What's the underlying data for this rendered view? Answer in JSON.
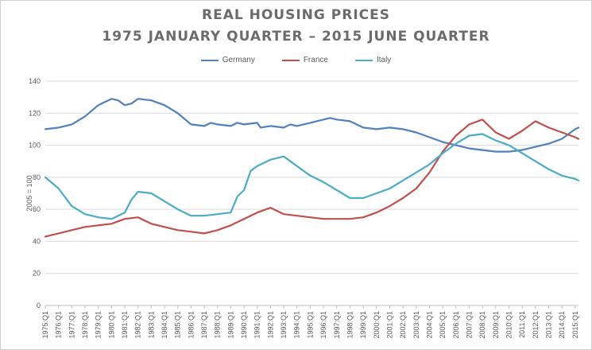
{
  "chart_data": {
    "type": "line",
    "title": "REAL HOUSING PRICES",
    "subtitle": "1975 JANUARY QUARTER – 2015 JUNE QUARTER",
    "xlabel": "",
    "ylabel": "2005 = 100",
    "ylim": [
      0,
      140
    ],
    "yticks": [
      0,
      20,
      40,
      60,
      80,
      100,
      120,
      140
    ],
    "grid": "horizontal",
    "legend_position": "top",
    "x_start_year": 1975,
    "x_end": "2015:Q2",
    "tick_labels": [
      "1975:Q1",
      "1976:Q1",
      "1977:Q1",
      "1978:Q1",
      "1979:Q1",
      "1980:Q1",
      "1981:Q1",
      "1982:Q1",
      "1983:Q1",
      "1984:Q1",
      "1985:Q1",
      "1986:Q1",
      "1987:Q1",
      "1988:Q1",
      "1989:Q1",
      "1990:Q1",
      "1991:Q1",
      "1992:Q1",
      "1993:Q1",
      "1994:Q1",
      "1995:Q1",
      "1996:Q1",
      "1997:Q1",
      "1998:Q1",
      "1999:Q1",
      "2000:Q1",
      "2001:Q1",
      "2002:Q1",
      "2003:Q1",
      "2004:Q1",
      "2005:Q1",
      "2006:Q1",
      "2007:Q1",
      "2008:Q1",
      "2009:Q1",
      "2010:Q1",
      "2011:Q1",
      "2012:Q1",
      "2013:Q1",
      "2014:Q1",
      "2015:Q1"
    ],
    "series": [
      {
        "name": "Germany",
        "color": "#4f81bd",
        "points": [
          [
            "1975:Q1",
            110
          ],
          [
            "1976:Q1",
            111
          ],
          [
            "1977:Q1",
            113
          ],
          [
            "1978:Q1",
            118
          ],
          [
            "1979:Q1",
            125
          ],
          [
            "1980:Q1",
            129
          ],
          [
            "1980:Q3",
            128
          ],
          [
            "1981:Q1",
            125
          ],
          [
            "1981:Q3",
            126
          ],
          [
            "1982:Q1",
            129
          ],
          [
            "1983:Q1",
            128
          ],
          [
            "1984:Q1",
            125
          ],
          [
            "1985:Q1",
            120
          ],
          [
            "1986:Q1",
            113
          ],
          [
            "1987:Q1",
            112
          ],
          [
            "1987:Q3",
            114
          ],
          [
            "1988:Q1",
            113
          ],
          [
            "1989:Q1",
            112
          ],
          [
            "1989:Q3",
            114
          ],
          [
            "1990:Q1",
            113
          ],
          [
            "1991:Q1",
            114
          ],
          [
            "1991:Q2",
            111
          ],
          [
            "1992:Q1",
            112
          ],
          [
            "1993:Q1",
            111
          ],
          [
            "1993:Q3",
            113
          ],
          [
            "1994:Q1",
            112
          ],
          [
            "1995:Q1",
            114
          ],
          [
            "1996:Q1",
            116
          ],
          [
            "1996:Q3",
            117
          ],
          [
            "1997:Q1",
            116
          ],
          [
            "1998:Q1",
            115
          ],
          [
            "1999:Q1",
            111
          ],
          [
            "2000:Q1",
            110
          ],
          [
            "2001:Q1",
            111
          ],
          [
            "2002:Q1",
            110
          ],
          [
            "2003:Q1",
            108
          ],
          [
            "2004:Q1",
            105
          ],
          [
            "2005:Q1",
            102
          ],
          [
            "2006:Q1",
            100
          ],
          [
            "2007:Q1",
            98
          ],
          [
            "2008:Q1",
            97
          ],
          [
            "2009:Q1",
            96
          ],
          [
            "2010:Q1",
            96
          ],
          [
            "2011:Q1",
            97
          ],
          [
            "2012:Q1",
            99
          ],
          [
            "2013:Q1",
            101
          ],
          [
            "2014:Q1",
            104
          ],
          [
            "2015:Q1",
            110
          ],
          [
            "2015:Q2",
            111
          ]
        ]
      },
      {
        "name": "France",
        "color": "#c0504d",
        "points": [
          [
            "1975:Q1",
            43
          ],
          [
            "1976:Q1",
            45
          ],
          [
            "1977:Q1",
            47
          ],
          [
            "1978:Q1",
            49
          ],
          [
            "1979:Q1",
            50
          ],
          [
            "1980:Q1",
            51
          ],
          [
            "1981:Q1",
            54
          ],
          [
            "1982:Q1",
            55
          ],
          [
            "1983:Q1",
            51
          ],
          [
            "1984:Q1",
            49
          ],
          [
            "1985:Q1",
            47
          ],
          [
            "1986:Q1",
            46
          ],
          [
            "1987:Q1",
            45
          ],
          [
            "1988:Q1",
            47
          ],
          [
            "1989:Q1",
            50
          ],
          [
            "1990:Q1",
            54
          ],
          [
            "1991:Q1",
            58
          ],
          [
            "1992:Q1",
            61
          ],
          [
            "1993:Q1",
            57
          ],
          [
            "1994:Q1",
            56
          ],
          [
            "1995:Q1",
            55
          ],
          [
            "1996:Q1",
            54
          ],
          [
            "1997:Q1",
            54
          ],
          [
            "1998:Q1",
            54
          ],
          [
            "1999:Q1",
            55
          ],
          [
            "2000:Q1",
            58
          ],
          [
            "2001:Q1",
            62
          ],
          [
            "2002:Q1",
            67
          ],
          [
            "2003:Q1",
            73
          ],
          [
            "2004:Q1",
            83
          ],
          [
            "2005:Q1",
            96
          ],
          [
            "2006:Q1",
            106
          ],
          [
            "2007:Q1",
            113
          ],
          [
            "2008:Q1",
            116
          ],
          [
            "2009:Q1",
            108
          ],
          [
            "2010:Q1",
            104
          ],
          [
            "2011:Q1",
            109
          ],
          [
            "2012:Q1",
            115
          ],
          [
            "2013:Q1",
            111
          ],
          [
            "2014:Q1",
            108
          ],
          [
            "2015:Q1",
            105
          ],
          [
            "2015:Q2",
            104
          ]
        ]
      },
      {
        "name": "Italy",
        "color": "#4bacc6",
        "points": [
          [
            "1975:Q1",
            80
          ],
          [
            "1976:Q1",
            73
          ],
          [
            "1977:Q1",
            62
          ],
          [
            "1978:Q1",
            57
          ],
          [
            "1979:Q1",
            55
          ],
          [
            "1980:Q1",
            54
          ],
          [
            "1981:Q1",
            58
          ],
          [
            "1981:Q3",
            66
          ],
          [
            "1982:Q1",
            71
          ],
          [
            "1983:Q1",
            70
          ],
          [
            "1984:Q1",
            65
          ],
          [
            "1985:Q1",
            60
          ],
          [
            "1986:Q1",
            56
          ],
          [
            "1987:Q1",
            56
          ],
          [
            "1988:Q1",
            57
          ],
          [
            "1989:Q1",
            58
          ],
          [
            "1989:Q3",
            68
          ],
          [
            "1990:Q1",
            72
          ],
          [
            "1990:Q3",
            84
          ],
          [
            "1991:Q1",
            87
          ],
          [
            "1992:Q1",
            91
          ],
          [
            "1993:Q1",
            93
          ],
          [
            "1994:Q1",
            87
          ],
          [
            "1995:Q1",
            81
          ],
          [
            "1996:Q1",
            77
          ],
          [
            "1997:Q1",
            72
          ],
          [
            "1998:Q1",
            67
          ],
          [
            "1999:Q1",
            67
          ],
          [
            "2000:Q1",
            70
          ],
          [
            "2001:Q1",
            73
          ],
          [
            "2002:Q1",
            78
          ],
          [
            "2003:Q1",
            83
          ],
          [
            "2004:Q1",
            88
          ],
          [
            "2005:Q1",
            95
          ],
          [
            "2006:Q1",
            101
          ],
          [
            "2007:Q1",
            106
          ],
          [
            "2008:Q1",
            107
          ],
          [
            "2009:Q1",
            103
          ],
          [
            "2010:Q1",
            100
          ],
          [
            "2011:Q1",
            95
          ],
          [
            "2012:Q1",
            90
          ],
          [
            "2013:Q1",
            85
          ],
          [
            "2014:Q1",
            81
          ],
          [
            "2015:Q1",
            79
          ],
          [
            "2015:Q2",
            78
          ]
        ]
      }
    ]
  }
}
